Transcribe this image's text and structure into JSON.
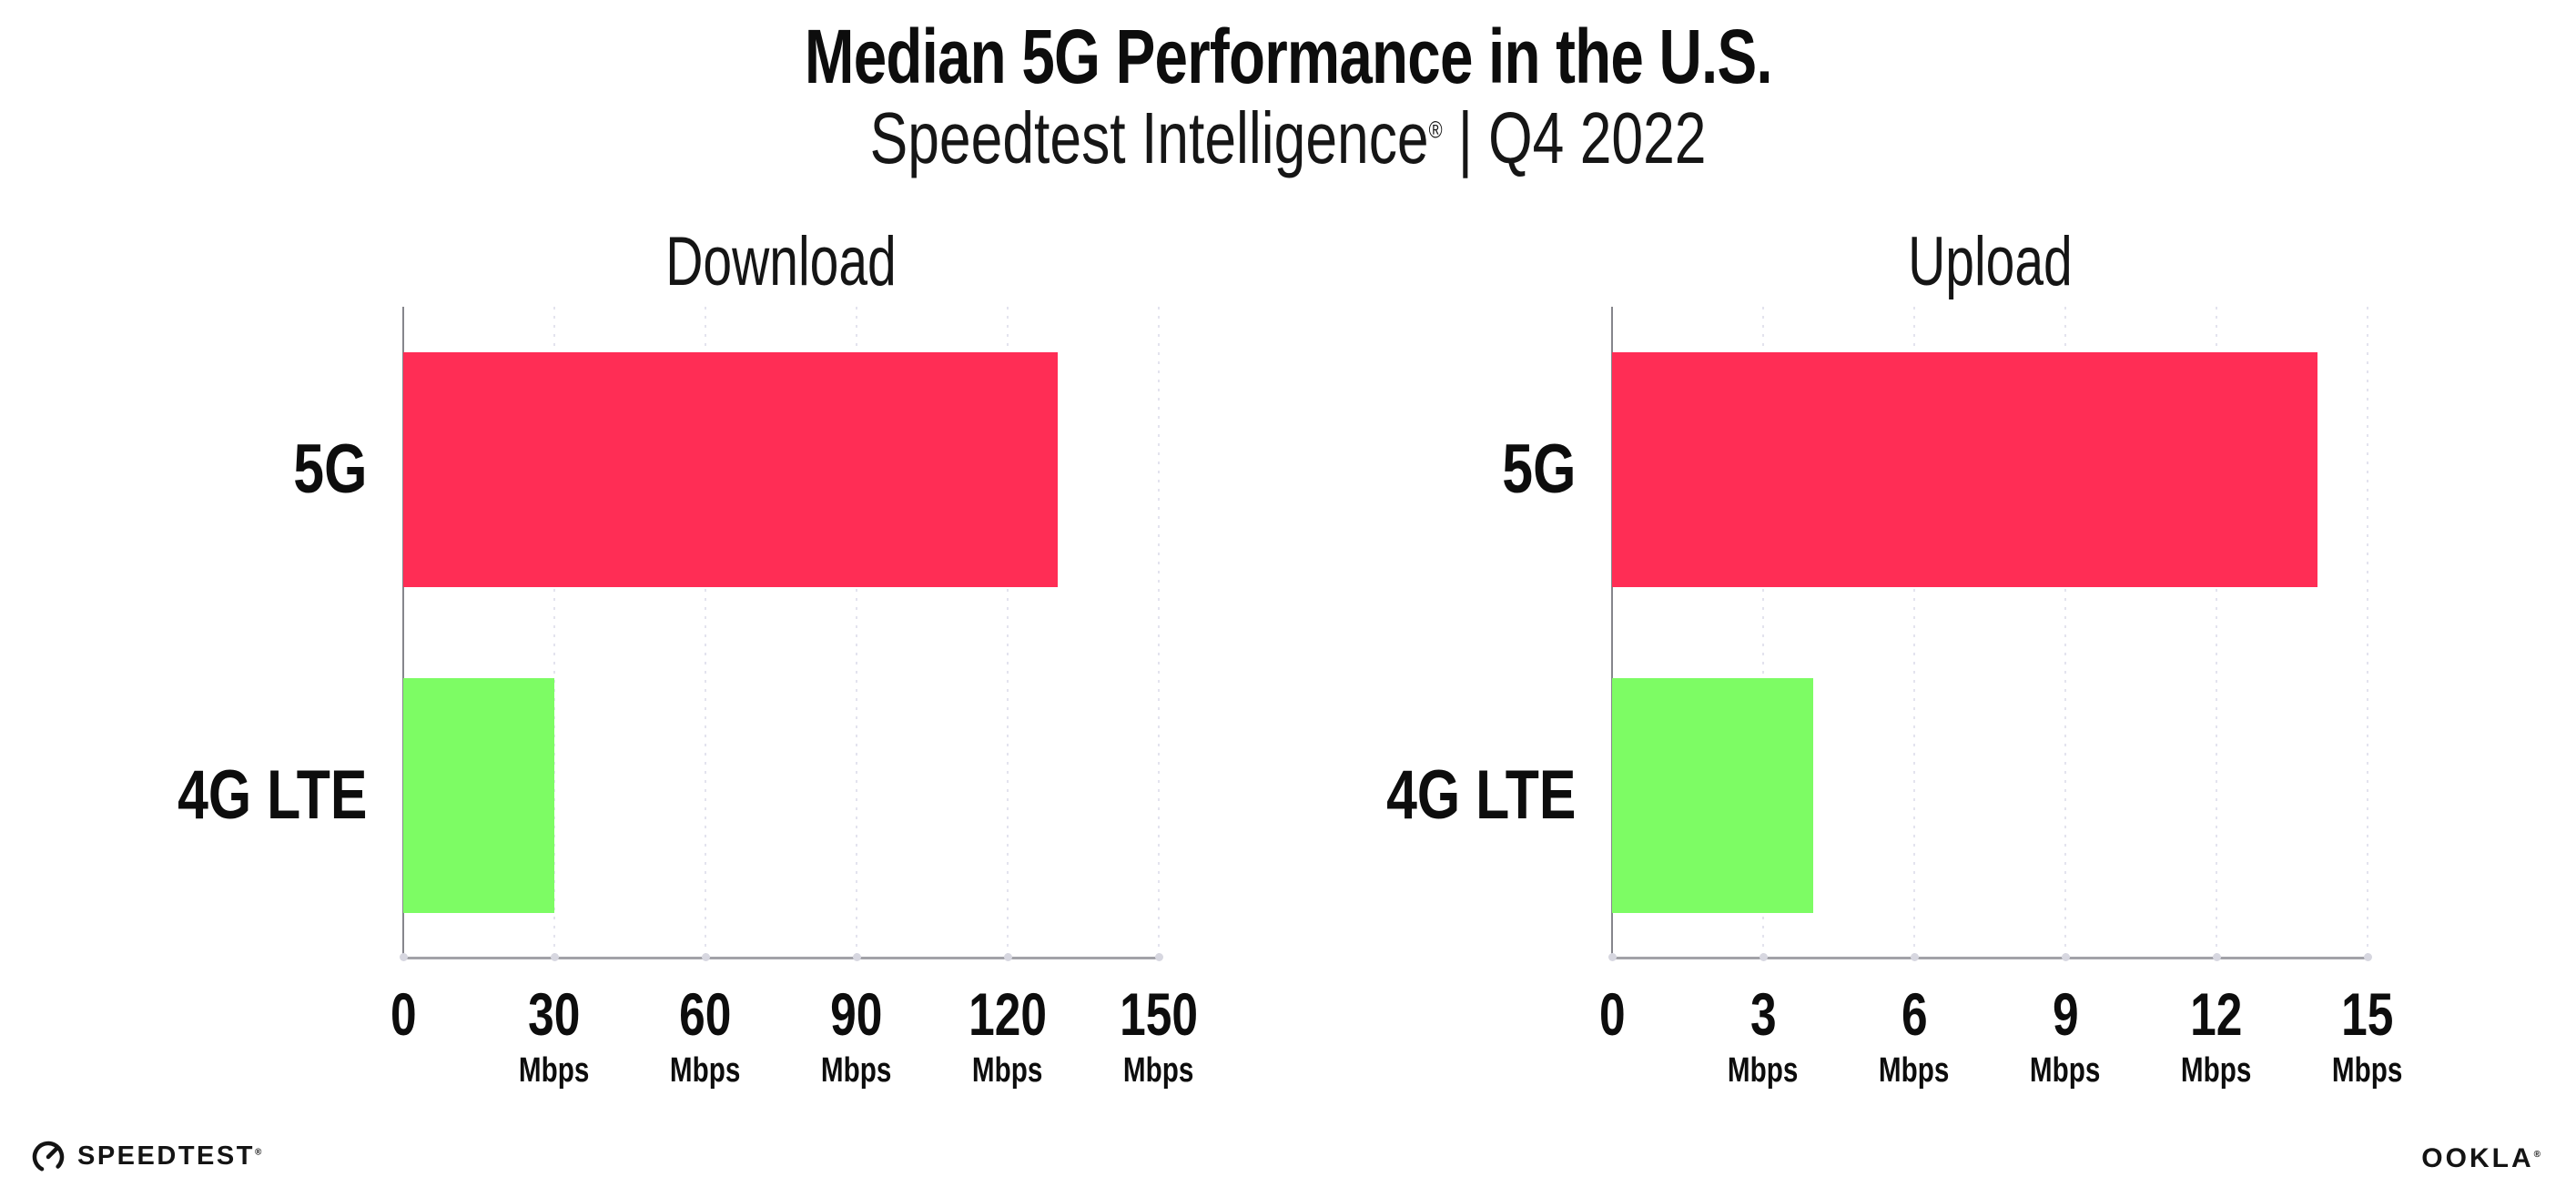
{
  "header": {
    "title": "Median 5G Performance in the U.S.",
    "subtitle_brand": "Speedtest Intelligence",
    "subtitle_reg": "®",
    "subtitle_sep": "|",
    "subtitle_period": "Q4 2022"
  },
  "chart_data": [
    {
      "type": "bar",
      "orientation": "horizontal",
      "title": "Download",
      "categories": [
        "5G",
        "4G LTE"
      ],
      "values": [
        130,
        30
      ],
      "unit": "Mbps",
      "xlim": [
        0,
        150
      ],
      "xticks": [
        0,
        30,
        60,
        90,
        120,
        150
      ],
      "tick_unit_label": "Mbps",
      "bar_colors": [
        "#FF2D55",
        "#7DFC64"
      ],
      "grid": "dotted-vertical",
      "legend": "none"
    },
    {
      "type": "bar",
      "orientation": "horizontal",
      "title": "Upload",
      "categories": [
        "5G",
        "4G LTE"
      ],
      "values": [
        14,
        4
      ],
      "unit": "Mbps",
      "xlim": [
        0,
        15
      ],
      "xticks": [
        0,
        3,
        6,
        9,
        12,
        15
      ],
      "tick_unit_label": "Mbps",
      "bar_colors": [
        "#FF2D55",
        "#7DFC64"
      ],
      "grid": "dotted-vertical",
      "legend": "none"
    }
  ],
  "colors": {
    "bar_5g": "#FF2D55",
    "bar_4g": "#7DFC64",
    "grid_dot": "#E3E3EE",
    "axis_y": "#86868C",
    "axis_x": "#A2A2A8",
    "tick_dot": "#D7D7E0",
    "text": "#0D0D0D"
  },
  "footer": {
    "speedtest_text": "SPEEDTEST",
    "speedtest_reg": "®",
    "ookla_text": "OOKLA",
    "ookla_reg": "®"
  }
}
